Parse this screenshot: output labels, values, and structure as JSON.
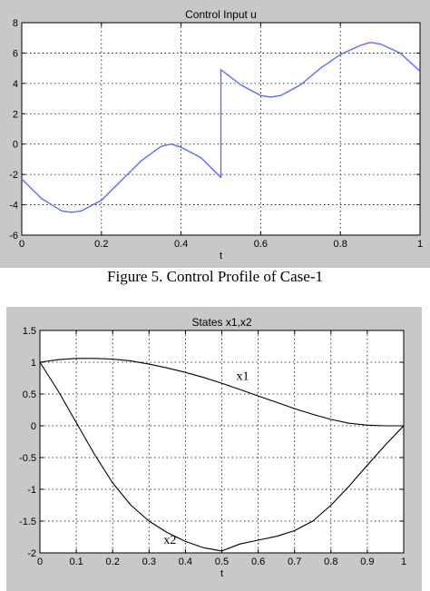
{
  "figure1": {
    "caption": "Figure 5. Control Profile of Case-1",
    "chart_data": {
      "type": "line",
      "title": "Control Input u",
      "xlabel": "t",
      "ylabel": "",
      "xlim": [
        0,
        1
      ],
      "ylim": [
        -6,
        8
      ],
      "xticks": [
        0,
        0.2,
        0.4,
        0.6,
        0.8,
        1
      ],
      "xtick_labels": [
        "0",
        "0.2",
        "0.4",
        "0.6",
        "0.8",
        "1"
      ],
      "yticks": [
        -6,
        -4,
        -2,
        0,
        2,
        4,
        6,
        8
      ],
      "ytick_labels": [
        "-6",
        "-4",
        "-2",
        "0",
        "2",
        "4",
        "6",
        "8"
      ],
      "grid": true,
      "series": [
        {
          "color": "#5a6cff",
          "x": [
            0,
            0.05,
            0.1,
            0.125,
            0.15,
            0.2,
            0.25,
            0.3,
            0.35,
            0.375,
            0.4,
            0.45,
            0.5,
            0.5,
            0.55,
            0.6,
            0.625,
            0.65,
            0.7,
            0.75,
            0.8,
            0.85,
            0.875,
            0.9,
            0.95,
            1
          ],
          "y": [
            -2.3,
            -3.6,
            -4.4,
            -4.5,
            -4.4,
            -3.7,
            -2.4,
            -1.1,
            -0.15,
            0,
            -0.2,
            -0.9,
            -2.2,
            4.9,
            3.9,
            3.2,
            3.1,
            3.2,
            3.9,
            5.0,
            5.9,
            6.5,
            6.7,
            6.6,
            6.0,
            4.8
          ]
        }
      ]
    }
  },
  "figure2": {
    "chart_data": {
      "type": "line",
      "title": "States x1,x2",
      "xlabel": "t",
      "ylabel": "",
      "xlim": [
        0,
        1
      ],
      "ylim": [
        -2,
        1.5
      ],
      "xticks": [
        0,
        0.1,
        0.2,
        0.3,
        0.4,
        0.5,
        0.6,
        0.7,
        0.8,
        0.9,
        1
      ],
      "xtick_labels": [
        "0",
        "0.1",
        "0.2",
        "0.3",
        "0.4",
        "0.5",
        "0.6",
        "0.7",
        "0.8",
        "0.9",
        "1"
      ],
      "yticks": [
        -2,
        -1.5,
        -1,
        -0.5,
        0,
        0.5,
        1,
        1.5
      ],
      "ytick_labels": [
        "-2",
        "-1.5",
        "-1",
        "-0.5",
        "0",
        "0.5",
        "1",
        "1.5"
      ],
      "grid": true,
      "series": [
        {
          "name": "x1",
          "color": "#000000",
          "x": [
            0,
            0.05,
            0.1,
            0.15,
            0.2,
            0.25,
            0.3,
            0.35,
            0.4,
            0.45,
            0.5,
            0.55,
            0.6,
            0.65,
            0.7,
            0.75,
            0.8,
            0.85,
            0.9,
            0.95,
            1
          ],
          "y": [
            1.0,
            1.04,
            1.06,
            1.06,
            1.05,
            1.02,
            0.97,
            0.91,
            0.84,
            0.76,
            0.67,
            0.57,
            0.47,
            0.37,
            0.27,
            0.18,
            0.1,
            0.04,
            0.01,
            0.0,
            0.0
          ]
        },
        {
          "name": "x2",
          "color": "#000000",
          "x": [
            0,
            0.05,
            0.1,
            0.15,
            0.2,
            0.25,
            0.3,
            0.35,
            0.4,
            0.45,
            0.5,
            0.55,
            0.6,
            0.65,
            0.7,
            0.75,
            0.8,
            0.85,
            0.9,
            0.95,
            1
          ],
          "y": [
            1.0,
            0.55,
            0.05,
            -0.45,
            -0.9,
            -1.25,
            -1.5,
            -1.68,
            -1.82,
            -1.92,
            -1.97,
            -1.86,
            -1.8,
            -1.74,
            -1.65,
            -1.5,
            -1.25,
            -0.95,
            -0.62,
            -0.3,
            0.0
          ]
        }
      ],
      "annotations": [
        {
          "text": "x1",
          "x": 0.54,
          "y": 0.72
        },
        {
          "text": "x2",
          "x": 0.34,
          "y": -1.86
        }
      ]
    }
  }
}
